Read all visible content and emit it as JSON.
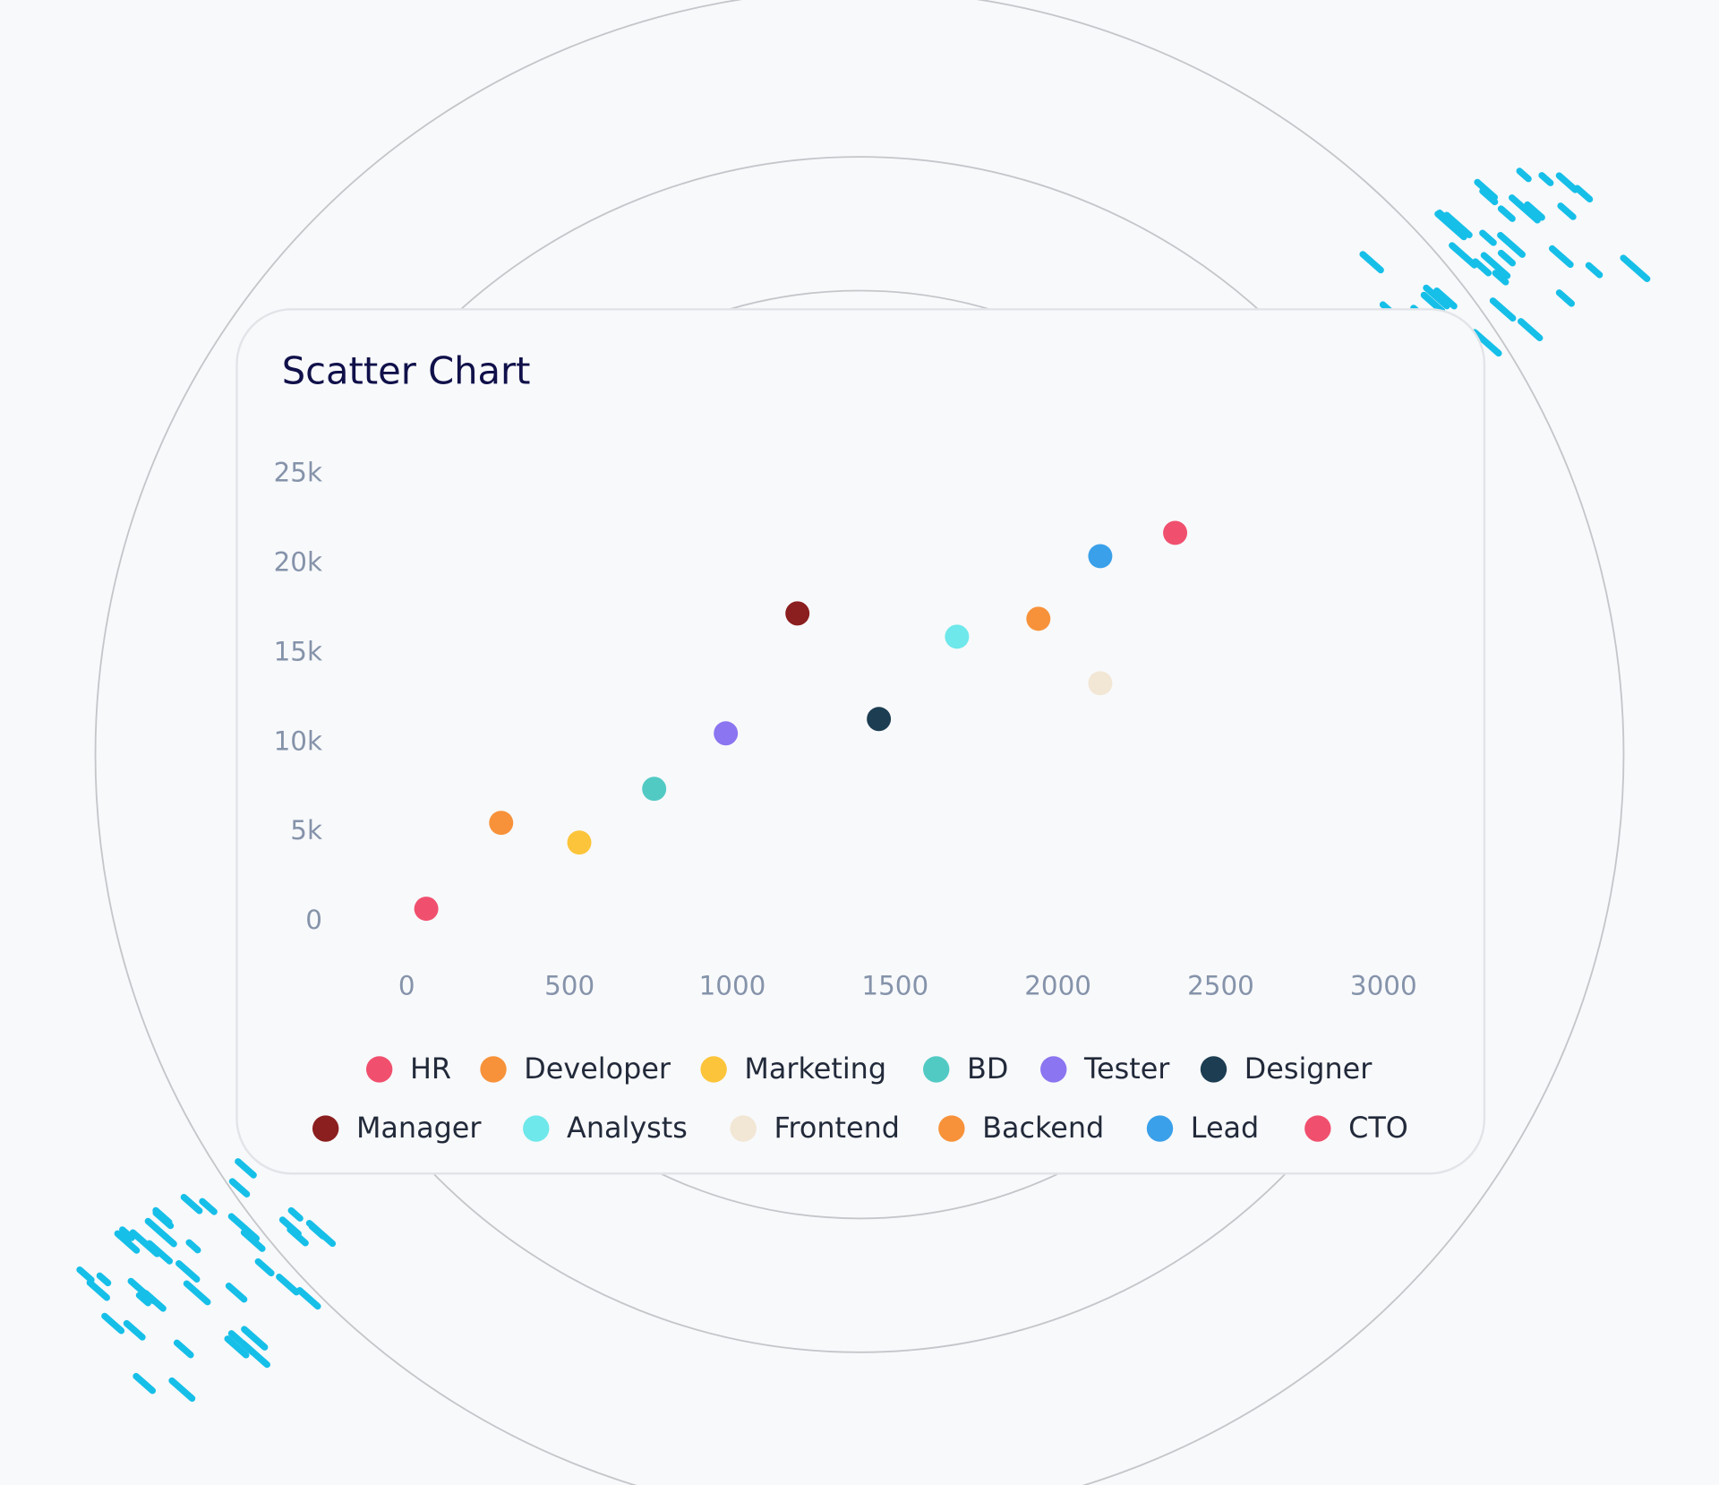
{
  "chart_data": {
    "type": "scatter",
    "title": "Scatter Chart",
    "xlim": [
      0,
      3000
    ],
    "xticks": [
      0,
      500,
      1000,
      1500,
      2000,
      2500,
      3000
    ],
    "ylim": [
      0,
      25000
    ],
    "yticks": [
      0,
      {
        "value": 5000,
        "label": "5k"
      },
      {
        "value": 10000,
        "label": "10k"
      },
      {
        "value": 15000,
        "label": "15k"
      },
      {
        "value": 20000,
        "label": "20k"
      },
      {
        "value": 25000,
        "label": "25k"
      }
    ],
    "series": [
      {
        "name": "HR",
        "color": "#f0506e",
        "x": [
          60
        ],
        "values": [
          700
        ]
      },
      {
        "name": "Developer",
        "color": "#f7923a",
        "x": [
          290
        ],
        "values": [
          5500
        ]
      },
      {
        "name": "Marketing",
        "color": "#fcc43a",
        "x": [
          530
        ],
        "values": [
          4400
        ]
      },
      {
        "name": "BD",
        "color": "#52cac4",
        "x": [
          760
        ],
        "values": [
          7400
        ]
      },
      {
        "name": "Tester",
        "color": "#8b75f0",
        "x": [
          980
        ],
        "values": [
          10500
        ]
      },
      {
        "name": "Designer",
        "color": "#1c3d52",
        "x": [
          1450
        ],
        "values": [
          11300
        ]
      },
      {
        "name": "Manager",
        "color": "#8b1e1e",
        "x": [
          1200
        ],
        "values": [
          17200
        ]
      },
      {
        "name": "Analysts",
        "color": "#6ee8ea",
        "x": [
          1690
        ],
        "values": [
          15900
        ]
      },
      {
        "name": "Frontend",
        "color": "#f2e6d4",
        "x": [
          2130
        ],
        "values": [
          13300
        ]
      },
      {
        "name": "Backend",
        "color": "#f7923a",
        "x": [
          1940
        ],
        "values": [
          16900
        ]
      },
      {
        "name": "Lead",
        "color": "#3aa0ea",
        "x": [
          2130
        ],
        "values": [
          20400
        ]
      },
      {
        "name": "CTO",
        "color": "#f0506e",
        "x": [
          2360
        ],
        "values": [
          21700
        ]
      }
    ]
  }
}
